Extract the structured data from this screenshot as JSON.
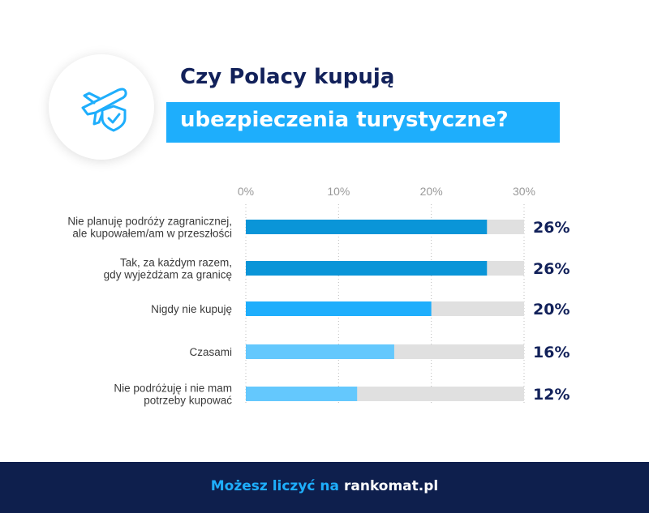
{
  "header": {
    "title_line1": "Czy Polacy kupują",
    "title_line2": "ubezpieczenia turystyczne?",
    "icon": "airplane-shield-icon"
  },
  "chart_data": {
    "type": "bar",
    "orientation": "horizontal",
    "categories": [
      [
        "Nie planuję podróży zagranicznej,",
        "ale kupowałem/am w przeszłości"
      ],
      [
        "Tak, za każdym razem,",
        "gdy wyjeżdżam za granicę"
      ],
      [
        "Nigdy nie kupuję"
      ],
      [
        "Czasami"
      ],
      [
        "Nie podróżuję i nie mam",
        "potrzeby kupować"
      ]
    ],
    "values": [
      26,
      26,
      20,
      16,
      12
    ],
    "value_labels": [
      "26%",
      "26%",
      "20%",
      "16%",
      "12%"
    ],
    "xlim": [
      0,
      30
    ],
    "x_ticks": [
      "0%",
      "10%",
      "20%",
      "30%"
    ],
    "bar_colors": [
      "#0a95d8",
      "#0a95d8",
      "#1eaefc",
      "#64c8fd",
      "#64c8fd"
    ],
    "track_color": "#e0e0e0",
    "label_color": "#12215a",
    "grid": true
  },
  "footer": {
    "tagline": "Możesz liczyć na",
    "brand": "rankomat.pl",
    "background": "#0e1f4d"
  }
}
